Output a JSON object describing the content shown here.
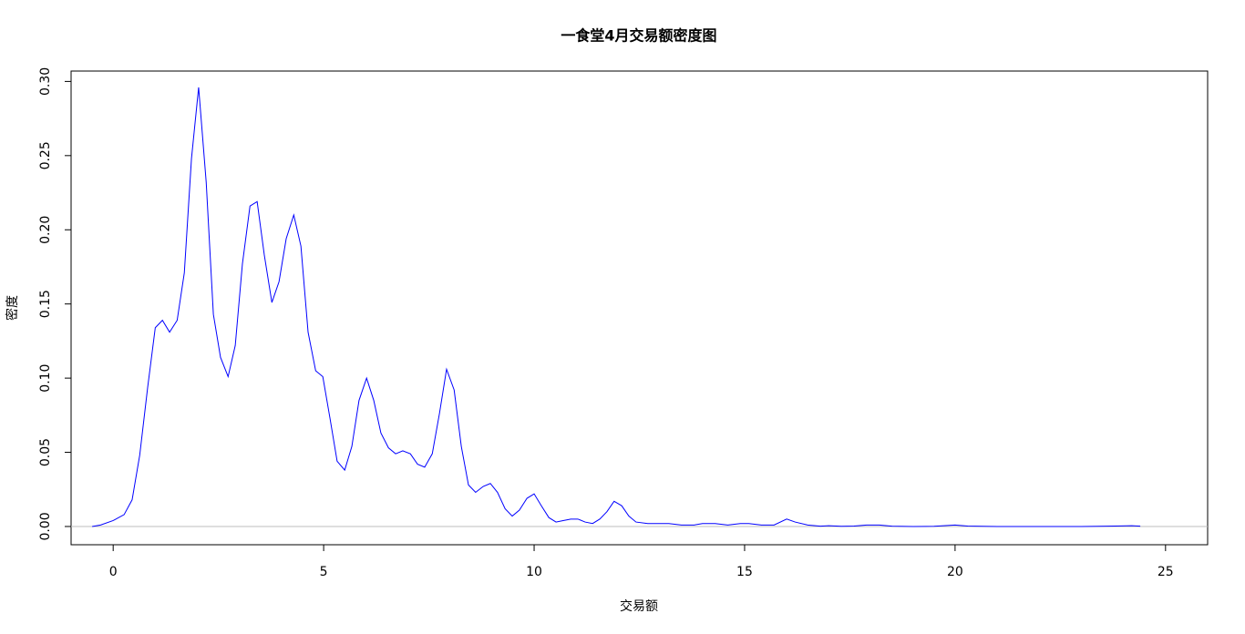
{
  "chart_data": {
    "type": "line",
    "title": "一食堂4月交易额密度图",
    "x_label": "交易额",
    "y_label": "密度",
    "series": [
      {
        "color": "#0000ff",
        "x": [
          -0.5,
          -0.3,
          0,
          0.26,
          0.45,
          0.63,
          0.82,
          1.0,
          1.17,
          1.34,
          1.52,
          1.69,
          1.86,
          2.03,
          2.21,
          2.38,
          2.55,
          2.73,
          2.9,
          3.07,
          3.25,
          3.42,
          3.59,
          3.77,
          3.94,
          4.11,
          4.29,
          4.46,
          4.63,
          4.81,
          4.98,
          5.15,
          5.32,
          5.5,
          5.67,
          5.84,
          6.02,
          6.19,
          6.36,
          6.54,
          6.71,
          6.88,
          7.06,
          7.23,
          7.4,
          7.58,
          7.75,
          7.92,
          8.1,
          8.27,
          8.44,
          8.61,
          8.79,
          8.96,
          9.13,
          9.31,
          9.48,
          9.65,
          9.83,
          10.0,
          10.17,
          10.35,
          10.52,
          10.69,
          10.87,
          11.04,
          11.21,
          11.39,
          11.56,
          11.73,
          11.9,
          12.08,
          12.25,
          12.42,
          12.7,
          13.0,
          13.2,
          13.5,
          13.8,
          14.0,
          14.3,
          14.6,
          14.9,
          15.1,
          15.4,
          15.7,
          16.0,
          16.2,
          16.5,
          16.8,
          17.0,
          17.3,
          17.6,
          17.9,
          18.2,
          18.5,
          19.0,
          19.5,
          20.0,
          20.3,
          21,
          22,
          23,
          23.8,
          24.2,
          24.4
        ],
        "values": [
          0,
          0.001,
          0.004,
          0.008,
          0.018,
          0.048,
          0.094,
          0.134,
          0.139,
          0.131,
          0.139,
          0.171,
          0.248,
          0.296,
          0.232,
          0.143,
          0.114,
          0.101,
          0.122,
          0.177,
          0.216,
          0.219,
          0.183,
          0.151,
          0.165,
          0.194,
          0.21,
          0.189,
          0.131,
          0.105,
          0.101,
          0.073,
          0.044,
          0.038,
          0.054,
          0.085,
          0.1,
          0.085,
          0.063,
          0.053,
          0.049,
          0.051,
          0.049,
          0.042,
          0.04,
          0.049,
          0.076,
          0.106,
          0.092,
          0.054,
          0.028,
          0.023,
          0.027,
          0.029,
          0.023,
          0.012,
          0.007,
          0.011,
          0.019,
          0.022,
          0.014,
          0.006,
          0.003,
          0.004,
          0.005,
          0.005,
          0.003,
          0.002,
          0.005,
          0.01,
          0.017,
          0.014,
          0.007,
          0.003,
          0.002,
          0.002,
          0.002,
          0.001,
          0.001,
          0.002,
          0.002,
          0.001,
          0.002,
          0.002,
          0.001,
          0.001,
          0.005,
          0.003,
          0.001,
          0.0002,
          0.0005,
          0.0001,
          0.0003,
          0.001,
          0.001,
          0.0002,
          0,
          0.0001,
          0.001,
          0.0003,
          0,
          0,
          0,
          0.0003,
          0.0005,
          0.0002
        ]
      }
    ],
    "xlim": [
      -1,
      26
    ],
    "xticks": [
      0,
      5,
      10,
      15,
      20,
      25
    ],
    "ylim": [
      -0.0123,
      0.307
    ],
    "yticks": [
      {
        "value": 0,
        "label": "0.00"
      },
      {
        "value": 0.05,
        "label": "0.05"
      },
      {
        "value": 0.1,
        "label": "0.10"
      },
      {
        "value": 0.15,
        "label": "0.15"
      },
      {
        "value": 0.2,
        "label": "0.20"
      },
      {
        "value": 0.25,
        "label": "0.25"
      },
      {
        "value": 0.3,
        "label": "0.30"
      }
    ],
    "zero_line_color": "#bebebe"
  }
}
